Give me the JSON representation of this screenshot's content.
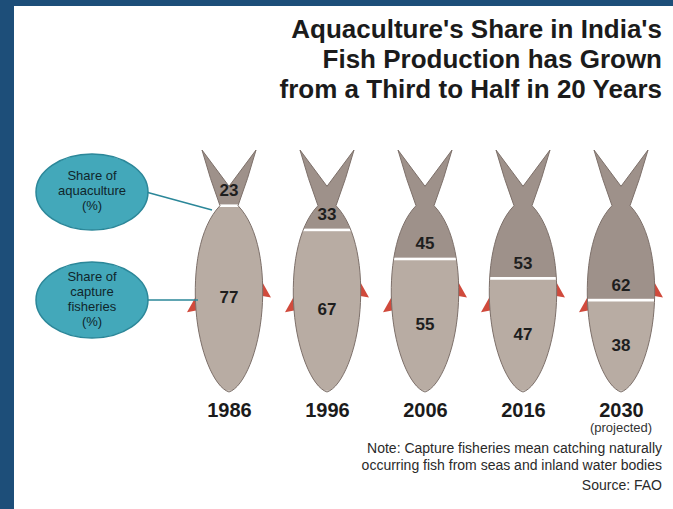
{
  "chart_data": {
    "type": "bar",
    "stacked": true,
    "data_labels": true,
    "tick_labels": "x",
    "legend": "left",
    "title": "Aquaculture's Share in India's Fish Production has Grown from a Third to Half in 20 Years",
    "categories": [
      "1986",
      "1996",
      "2006",
      "2016",
      "2030"
    ],
    "series": [
      {
        "name": "Share of aquaculture (%)",
        "color": "#9e918a",
        "values": [
          23,
          33,
          45,
          53,
          62
        ]
      },
      {
        "name": "Share of capture fisheries (%)",
        "color": "#b8aca3",
        "values": [
          77,
          67,
          55,
          47,
          38
        ]
      }
    ],
    "ylim": [
      0,
      100
    ],
    "annotations": [
      "(projected)",
      "Note: Capture fisheries mean catching naturally occurring fish from seas and inland water bodies",
      "Source: FAO"
    ]
  }
}
